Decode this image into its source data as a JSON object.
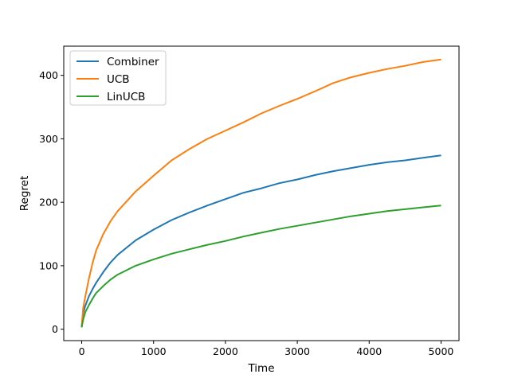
{
  "chart_data": {
    "type": "line",
    "xlabel": "Time",
    "ylabel": "Regret",
    "xlim": [
      -250,
      5250
    ],
    "ylim": [
      -18,
      446
    ],
    "xticks": [
      0,
      1000,
      2000,
      3000,
      4000,
      5000
    ],
    "yticks": [
      0,
      100,
      200,
      300,
      400
    ],
    "grid": false,
    "legend_position": "top-left",
    "x": [
      0,
      20,
      50,
      100,
      150,
      200,
      300,
      400,
      500,
      750,
      1000,
      1250,
      1500,
      1750,
      2000,
      2250,
      2500,
      2750,
      3000,
      3250,
      3500,
      3750,
      4000,
      4250,
      4500,
      4750,
      5000
    ],
    "series": [
      {
        "name": "Combiner",
        "color": "#1f77b4",
        "values": [
          3,
          25,
          37,
          52,
          63,
          73,
          90,
          105,
          117,
          140,
          157,
          172,
          184,
          195,
          205,
          215,
          222,
          230,
          236,
          243,
          249,
          254,
          259,
          263,
          266,
          270,
          274
        ]
      },
      {
        "name": "UCB",
        "color": "#ff7f0e",
        "values": [
          4,
          33,
          52,
          80,
          104,
          124,
          150,
          170,
          186,
          217,
          242,
          266,
          284,
          300,
          313,
          326,
          340,
          352,
          363,
          375,
          388,
          397,
          404,
          410,
          415,
          421,
          425
        ]
      },
      {
        "name": "LinUCB",
        "color": "#2ca02c",
        "values": [
          3,
          15,
          27,
          38,
          48,
          57,
          68,
          78,
          86,
          100,
          110,
          119,
          126,
          133,
          139,
          146,
          152,
          158,
          163,
          168,
          173,
          178,
          182,
          186,
          189,
          192,
          195
        ]
      }
    ]
  }
}
